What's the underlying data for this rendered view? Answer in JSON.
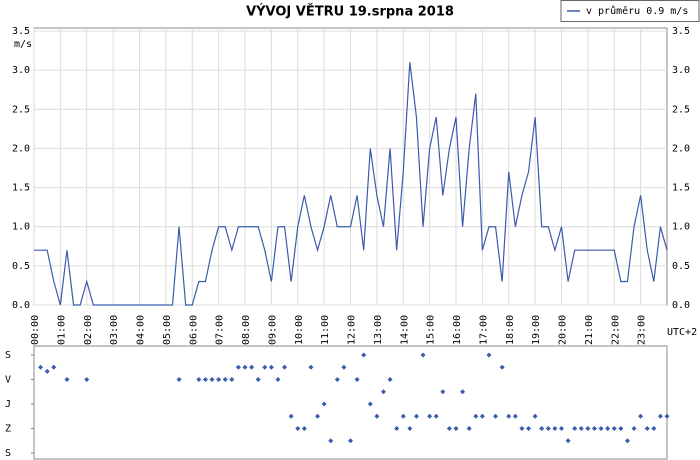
{
  "chart_data": [
    {
      "type": "line",
      "title": "VÝVOJ VĚTRU  19.srpna 2018",
      "y_label": "m/s",
      "x_label": "UTC+2",
      "series": [
        {
          "name": "v průměru 0.9 m/s",
          "color": "#3a5cad",
          "values": [
            0.7,
            0.7,
            0.7,
            0.3,
            0,
            0.7,
            0,
            0,
            0.3,
            0,
            0,
            0,
            0,
            0,
            0,
            0,
            0,
            0,
            0,
            0,
            0,
            0,
            1,
            0,
            0,
            0.3,
            0.3,
            0.7,
            1,
            1,
            0.7,
            1,
            1,
            1,
            1,
            0.7,
            0.3,
            1,
            1,
            0.3,
            1,
            1.4,
            1,
            0.7,
            1,
            1.4,
            1,
            1,
            1,
            1.4,
            0.7,
            2,
            1.4,
            1,
            2,
            0.7,
            1.7,
            3.1,
            2.4,
            1,
            2,
            2.4,
            1.4,
            2,
            2.4,
            1,
            2,
            2.7,
            0.7,
            1,
            1,
            0.3,
            1.7,
            1,
            1.4,
            1.7,
            2.4,
            1,
            1,
            0.7,
            1,
            0.3,
            0.7,
            0.7,
            0.7,
            0.7,
            0.7,
            0.7,
            0.7,
            0.3,
            0.3,
            1,
            1.4,
            0.7,
            0.3,
            1,
            0.7
          ]
        }
      ],
      "x": [
        0,
        0.25,
        0.5,
        0.75,
        1,
        1.25,
        1.5,
        1.75,
        2,
        2.25,
        2.5,
        2.75,
        3,
        3.25,
        3.5,
        3.75,
        4,
        4.25,
        4.5,
        4.75,
        5,
        5.25,
        5.5,
        5.75,
        6,
        6.25,
        6.5,
        6.75,
        7,
        7.25,
        7.5,
        7.75,
        8,
        8.25,
        8.5,
        8.75,
        9,
        9.25,
        9.5,
        9.75,
        10,
        10.25,
        10.5,
        10.75,
        11,
        11.25,
        11.5,
        11.75,
        12,
        12.25,
        12.5,
        12.75,
        13,
        13.25,
        13.5,
        13.75,
        14,
        14.25,
        14.5,
        14.75,
        15,
        15.25,
        15.5,
        15.75,
        16,
        16.25,
        16.5,
        16.75,
        17,
        17.25,
        17.5,
        17.75,
        18,
        18.25,
        18.5,
        18.75,
        19,
        19.25,
        19.5,
        19.75,
        20,
        20.25,
        20.5,
        20.75,
        21,
        21.25,
        21.5,
        21.75,
        22,
        22.25,
        22.5,
        22.75,
        23,
        23.25,
        23.5,
        23.75,
        24
      ],
      "xlim": [
        0,
        24
      ],
      "xticks": [
        {
          "value": 0,
          "label": "00:00"
        },
        {
          "value": 1,
          "label": "01:00"
        },
        {
          "value": 2,
          "label": "02:00"
        },
        {
          "value": 3,
          "label": "03:00"
        },
        {
          "value": 4,
          "label": "04:00"
        },
        {
          "value": 5,
          "label": "05:00"
        },
        {
          "value": 6,
          "label": "06:00"
        },
        {
          "value": 7,
          "label": "07:00"
        },
        {
          "value": 8,
          "label": "08:00"
        },
        {
          "value": 9,
          "label": "09:00"
        },
        {
          "value": 10,
          "label": "10:00"
        },
        {
          "value": 11,
          "label": "11:00"
        },
        {
          "value": 12,
          "label": "12:00"
        },
        {
          "value": 13,
          "label": "13:00"
        },
        {
          "value": 14,
          "label": "14:00"
        },
        {
          "value": 15,
          "label": "15:00"
        },
        {
          "value": 16,
          "label": "16:00"
        },
        {
          "value": 17,
          "label": "17:00"
        },
        {
          "value": 18,
          "label": "18:00"
        },
        {
          "value": 19,
          "label": "19:00"
        },
        {
          "value": 20,
          "label": "20:00"
        },
        {
          "value": 21,
          "label": "21:00"
        },
        {
          "value": 22,
          "label": "22:00"
        },
        {
          "value": 23,
          "label": "23:00"
        }
      ],
      "ylim": [
        0,
        3.5
      ],
      "yticks": [
        {
          "value": 0,
          "label": "0.0"
        },
        {
          "value": 0.5,
          "label": "0.5"
        },
        {
          "value": 1,
          "label": "1.0"
        },
        {
          "value": 1.5,
          "label": "1.5"
        },
        {
          "value": 2,
          "label": "2.0"
        },
        {
          "value": 2.5,
          "label": "2.5"
        },
        {
          "value": 3,
          "label": "3.0"
        },
        {
          "value": 3.5,
          "label": "3.5"
        }
      ],
      "grid": true,
      "legend": "top-right"
    },
    {
      "type": "scatter",
      "color": "#3a5cad",
      "values": [
        null,
        45,
        60,
        45,
        null,
        90,
        null,
        null,
        90,
        null,
        null,
        null,
        null,
        null,
        null,
        null,
        null,
        null,
        null,
        null,
        null,
        null,
        90,
        null,
        null,
        90,
        90,
        90,
        90,
        90,
        90,
        45,
        45,
        45,
        90,
        45,
        45,
        90,
        45,
        225,
        270,
        270,
        45,
        225,
        180,
        315,
        90,
        45,
        315,
        90,
        0,
        180,
        225,
        135,
        90,
        270,
        225,
        270,
        225,
        0,
        225,
        225,
        135,
        270,
        270,
        135,
        270,
        225,
        225,
        0,
        225,
        45,
        225,
        225,
        270,
        270,
        225,
        270,
        270,
        270,
        270,
        315,
        270,
        270,
        270,
        270,
        270,
        270,
        270,
        270,
        315,
        270,
        225,
        270,
        270,
        225,
        225
      ],
      "x": [
        0,
        0.25,
        0.5,
        0.75,
        1,
        1.25,
        1.5,
        1.75,
        2,
        2.25,
        2.5,
        2.75,
        3,
        3.25,
        3.5,
        3.75,
        4,
        4.25,
        4.5,
        4.75,
        5,
        5.25,
        5.5,
        5.75,
        6,
        6.25,
        6.5,
        6.75,
        7,
        7.25,
        7.5,
        7.75,
        8,
        8.25,
        8.5,
        8.75,
        9,
        9.25,
        9.5,
        9.75,
        10,
        10.25,
        10.5,
        10.75,
        11,
        11.25,
        11.5,
        11.75,
        12,
        12.25,
        12.5,
        12.75,
        13,
        13.25,
        13.5,
        13.75,
        14,
        14.25,
        14.5,
        14.75,
        15,
        15.25,
        15.5,
        15.75,
        16,
        16.25,
        16.5,
        16.75,
        17,
        17.25,
        17.5,
        17.75,
        18,
        18.25,
        18.5,
        18.75,
        19,
        19.25,
        19.5,
        19.75,
        20,
        20.25,
        20.5,
        20.75,
        21,
        21.25,
        21.5,
        21.75,
        22,
        22.25,
        22.5,
        22.75,
        23,
        23.25,
        23.5,
        23.75,
        24
      ],
      "xlim": [
        0,
        24
      ],
      "ylim": [
        0,
        360
      ],
      "y_reversed": true,
      "yticks": [
        {
          "value": 0,
          "label": "S"
        },
        {
          "value": 90,
          "label": "V"
        },
        {
          "value": 180,
          "label": "J"
        },
        {
          "value": 270,
          "label": "Z"
        },
        {
          "value": 360,
          "label": "S"
        }
      ]
    }
  ]
}
